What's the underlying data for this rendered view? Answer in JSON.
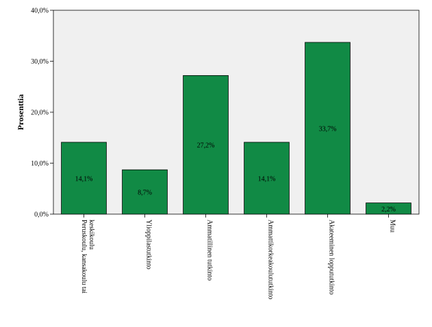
{
  "chart_data": {
    "type": "bar",
    "title": "",
    "xlabel": "",
    "ylabel": "Prosenttia",
    "ylim": [
      0,
      40
    ],
    "yticks": [
      "0,0%",
      "10,0%",
      "20,0%",
      "30,0%",
      "40,0%"
    ],
    "grid": false,
    "legend": "none",
    "categories": [
      [
        "Peruskoulu, kansakoulu tai",
        "keskikoulu"
      ],
      [
        "Ylioppilastutkinto"
      ],
      [
        "Ammatillinen tutkinto"
      ],
      [
        "Ammattikorkeakoulututkinto"
      ],
      [
        "Akateeminen loppututkinto"
      ],
      [
        "Muu"
      ]
    ],
    "values": [
      14.1,
      8.7,
      27.2,
      14.1,
      33.7,
      2.2
    ],
    "value_labels": [
      "14,1%",
      "8,7%",
      "27,2%",
      "14,1%",
      "33,7%",
      "2,2%"
    ],
    "colors": {
      "bar": "#118a45",
      "plot_bg": "#f0f0f0",
      "frame": "#000000"
    }
  }
}
